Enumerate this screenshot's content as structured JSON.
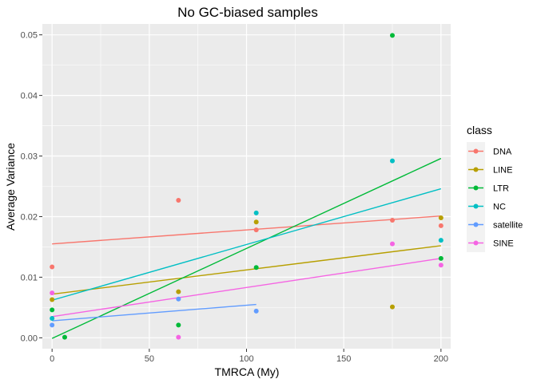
{
  "chart_data": {
    "type": "scatter",
    "title": "No GC-biased samples",
    "xlabel": "TMRCA (My)",
    "ylabel": "Average Variance",
    "xlim": [
      -5,
      205
    ],
    "ylim": [
      -0.0018,
      0.0518
    ],
    "x_ticks": [
      0,
      50,
      100,
      150,
      200
    ],
    "x_tick_labels": [
      "0",
      "50",
      "100",
      "150",
      "200"
    ],
    "y_ticks": [
      0.0,
      0.01,
      0.02,
      0.03,
      0.04,
      0.05
    ],
    "y_tick_labels": [
      "0.00",
      "0.01",
      "0.02",
      "0.03",
      "0.04",
      "0.05"
    ],
    "grid": true,
    "legend": {
      "title": "class",
      "position": "right"
    },
    "series": [
      {
        "name": "DNA",
        "color": "#F8766D",
        "points": [
          [
            0,
            0.0117
          ],
          [
            65,
            0.0227
          ],
          [
            105,
            0.0178
          ],
          [
            175,
            0.0194
          ],
          [
            200,
            0.0185
          ]
        ],
        "trend": [
          [
            0,
            0.0155
          ],
          [
            200,
            0.0201
          ]
        ]
      },
      {
        "name": "LINE",
        "color": "#B79F00",
        "points": [
          [
            0,
            0.0063
          ],
          [
            65,
            0.0076
          ],
          [
            105,
            0.0191
          ],
          [
            175,
            0.0051
          ],
          [
            200,
            0.0198
          ]
        ],
        "trend": [
          [
            0,
            0.0072
          ],
          [
            200,
            0.0152
          ]
        ]
      },
      {
        "name": "LTR",
        "color": "#00BA38",
        "points": [
          [
            0,
            0.0046
          ],
          [
            6.5,
            0.0001
          ],
          [
            65,
            0.0021
          ],
          [
            105,
            0.0116
          ],
          [
            175,
            0.0499
          ],
          [
            200,
            0.0131
          ]
        ],
        "trend": [
          [
            0,
            -0.0001
          ],
          [
            200,
            0.0296
          ]
        ]
      },
      {
        "name": "NC",
        "color": "#00BFC4",
        "points": [
          [
            0,
            0.0032
          ],
          [
            105,
            0.0206
          ],
          [
            175,
            0.0292
          ],
          [
            200,
            0.0161
          ]
        ],
        "trend": [
          [
            0,
            0.0062
          ],
          [
            200,
            0.0246
          ]
        ]
      },
      {
        "name": "satellite",
        "color": "#619CFF",
        "points": [
          [
            0,
            0.0021
          ],
          [
            65,
            0.0064
          ],
          [
            105,
            0.0044
          ]
        ],
        "trend": [
          [
            0,
            0.0028
          ],
          [
            105,
            0.0055
          ]
        ]
      },
      {
        "name": "SINE",
        "color": "#F564E3",
        "points": [
          [
            0,
            0.0074
          ],
          [
            65,
            0.0001
          ],
          [
            175,
            0.0155
          ],
          [
            200,
            0.012
          ]
        ],
        "trend": [
          [
            0,
            0.0035
          ],
          [
            200,
            0.0131
          ]
        ]
      }
    ]
  }
}
